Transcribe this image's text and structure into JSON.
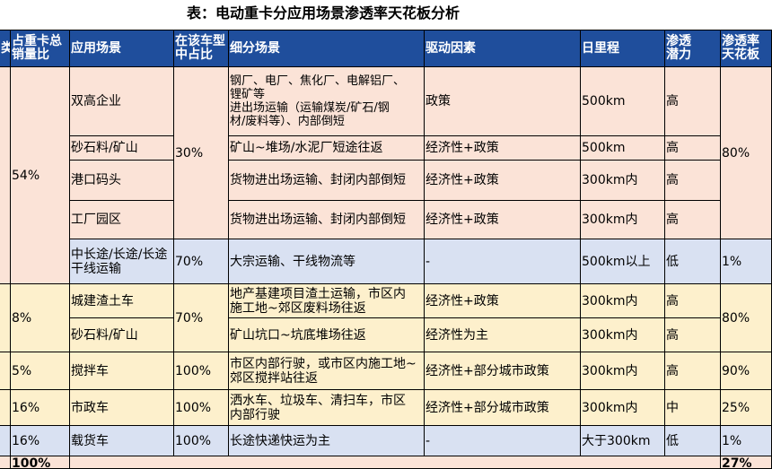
{
  "title": "表：电动重卡分应用场景渗透率天花板分析",
  "headers": {
    "type": "类",
    "share": "占重卡总\n销量比",
    "scenario": "应用场景",
    "model_share": "在该车型\n中占比",
    "sub_scenario": "细分场景",
    "driver": "驱动因素",
    "daily_mileage": "日里程",
    "potential": "渗透\n潜力",
    "ceiling": "渗透率\n天花板"
  },
  "groups": {
    "g1": {
      "share": "54%",
      "ceiling": "80%"
    },
    "g2": {
      "share": "8%",
      "model_share": "70%",
      "ceiling": "80%"
    }
  },
  "rows": [
    {
      "scenario": "双高企业",
      "sub": "钢厂、电厂、焦化厂、电解铝厂、\n锂矿等\n进出场运输（运输煤炭/矿石/钢\n材/废料等）、内部倒短",
      "driver": "政策",
      "mileage": "500km",
      "potential": "高"
    },
    {
      "scenario": "砂石料/矿山",
      "sub": "矿山~堆场/水泥厂短途往返",
      "driver": "经济性+政策",
      "mileage": "500km",
      "potential": "高"
    },
    {
      "scenario": "港口码头",
      "sub": "货物进出场运输、封闭内部倒短",
      "driver": "经济性+政策",
      "mileage": "300km内",
      "potential": "高"
    },
    {
      "scenario": "工厂园区",
      "sub": "货物进出场运输、封闭内部倒短",
      "driver": "经济性+政策",
      "mileage": "300km内",
      "potential": "高"
    },
    {
      "scenario": "中长途/长途/长途\n干线运输",
      "model_share": "70%",
      "sub": "大宗运输、干线物流等",
      "driver": "-",
      "mileage": "500km以上",
      "potential": "低",
      "ceiling": "1%"
    },
    {
      "scenario": "城建渣土车",
      "sub": "地产基建项目渣土运输，市区内\n施工地~郊区废料场往返",
      "driver": "经济性+政策",
      "mileage": "300km内",
      "potential": "高"
    },
    {
      "scenario": "砂石料/矿山",
      "sub": "矿山坑口~坑底堆场往返",
      "driver": "经济性为主",
      "mileage": "300km内",
      "potential": "高"
    },
    {
      "share": "5%",
      "scenario": "搅拌车",
      "model_share": "100%",
      "sub": "市区内部行驶，或市区内施工地~\n郊区搅拌站往返",
      "driver": "经济性+部分城市政策",
      "mileage": "300km内",
      "potential": "高",
      "ceiling": "90%"
    },
    {
      "share": "16%",
      "scenario": "市政车",
      "model_share": "100%",
      "sub": "洒水车、垃圾车、清扫车，市区\n内部行驶",
      "driver": "经济性+部分城市政策",
      "mileage": "300km内",
      "potential": "中",
      "ceiling": "25%"
    },
    {
      "share": "16%",
      "scenario": "载货车",
      "model_share": "100%",
      "sub": "长途快递快运为主",
      "driver": "-",
      "mileage": "大于300km",
      "potential": "低",
      "ceiling": "1%"
    }
  ],
  "group1_model_share": "30%",
  "total": {
    "share": "100%",
    "ceiling": "27%"
  },
  "colors": {
    "header": "#1f4e9c",
    "pink": "#fbe3d7",
    "blue": "#d9e1f2",
    "yellow": "#fdf0cc"
  }
}
